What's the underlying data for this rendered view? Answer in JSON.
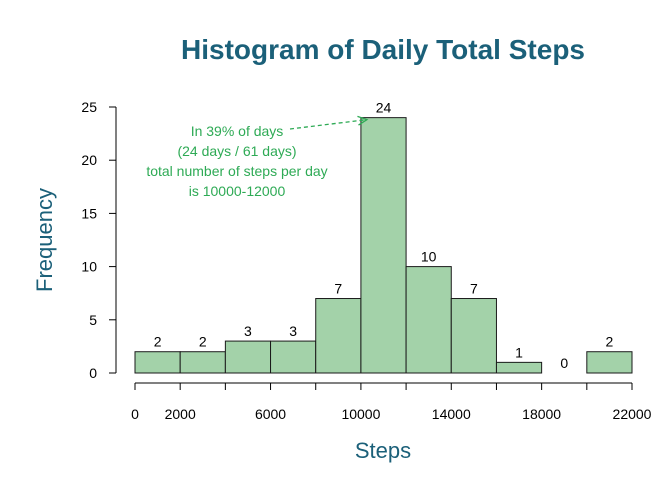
{
  "chart_data": {
    "type": "bar",
    "title": "Histogram of Daily Total Steps",
    "xlabel": "Steps",
    "ylabel": "Frequency",
    "bins": [
      {
        "from": 0,
        "to": 2000,
        "count": 2
      },
      {
        "from": 2000,
        "to": 4000,
        "count": 2
      },
      {
        "from": 4000,
        "to": 6000,
        "count": 3
      },
      {
        "from": 6000,
        "to": 8000,
        "count": 3
      },
      {
        "from": 8000,
        "to": 10000,
        "count": 7
      },
      {
        "from": 10000,
        "to": 12000,
        "count": 24
      },
      {
        "from": 12000,
        "to": 14000,
        "count": 10
      },
      {
        "from": 14000,
        "to": 16000,
        "count": 7
      },
      {
        "from": 16000,
        "to": 18000,
        "count": 1
      },
      {
        "from": 18000,
        "to": 20000,
        "count": 0
      },
      {
        "from": 20000,
        "to": 22000,
        "count": 2
      }
    ],
    "xlim": [
      0,
      22000
    ],
    "ylim": [
      0,
      25
    ],
    "x_ticks": [
      0,
      2000,
      6000,
      10000,
      14000,
      18000,
      22000
    ],
    "y_ticks": [
      0,
      5,
      10,
      15,
      20,
      25
    ],
    "grid": false,
    "annotation": {
      "lines": [
        "In 39% of days",
        "(24 days / 61 days)",
        "total number of steps per day",
        "is 10000-12000"
      ],
      "arrow_to_bin": "10000-12000"
    },
    "colors": {
      "bar_fill": "#a3d2a9",
      "bar_stroke": "#1a1a1a",
      "title": "#1b6079",
      "axis_title": "#1b6079",
      "annotation": "#2eaa55"
    }
  }
}
